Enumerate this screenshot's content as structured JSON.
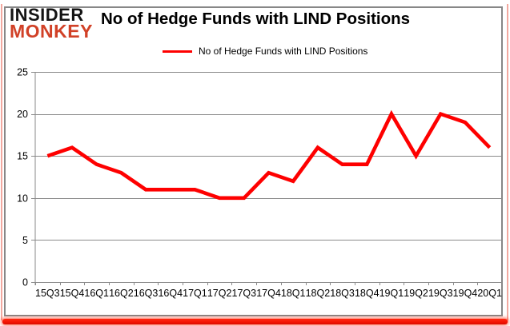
{
  "logo": {
    "line1": "INSIDER",
    "line2": "MONKEY",
    "line1_color": "#141414",
    "line2_color": "#d14127"
  },
  "header": {
    "title": "No of Hedge Funds with LIND Positions"
  },
  "legend": {
    "label": "No of Hedge Funds with LIND Positions",
    "line_color": "#fe0000"
  },
  "chart_data": {
    "type": "line",
    "title": "No of Hedge Funds with LIND Positions",
    "categories": [
      "15Q3",
      "15Q4",
      "16Q1",
      "16Q2",
      "16Q3",
      "16Q4",
      "17Q1",
      "17Q2",
      "17Q3",
      "17Q4",
      "18Q1",
      "18Q2",
      "18Q3",
      "18Q4",
      "19Q1",
      "19Q2",
      "19Q3",
      "19Q4",
      "20Q1"
    ],
    "series": [
      {
        "name": "No of Hedge Funds with LIND Positions",
        "color": "#fe0000",
        "values": [
          15,
          16,
          14,
          13,
          11,
          11,
          11,
          10,
          10,
          13,
          12,
          16,
          14,
          14,
          20,
          15,
          20,
          19,
          16
        ]
      }
    ],
    "xlabel": "",
    "ylabel": "",
    "ylim": [
      0,
      25
    ],
    "yticks": [
      0,
      5,
      10,
      15,
      20,
      25
    ],
    "grid": true,
    "legend_position": "top-center",
    "gridline_color": "#8a8a8a",
    "axis_color": "#8a8a8a",
    "tick_label_color": "#000000",
    "frame_border_color": "#878787",
    "bottom_bar_color": "#f31303",
    "side_edge_color": "#f2a89f"
  }
}
